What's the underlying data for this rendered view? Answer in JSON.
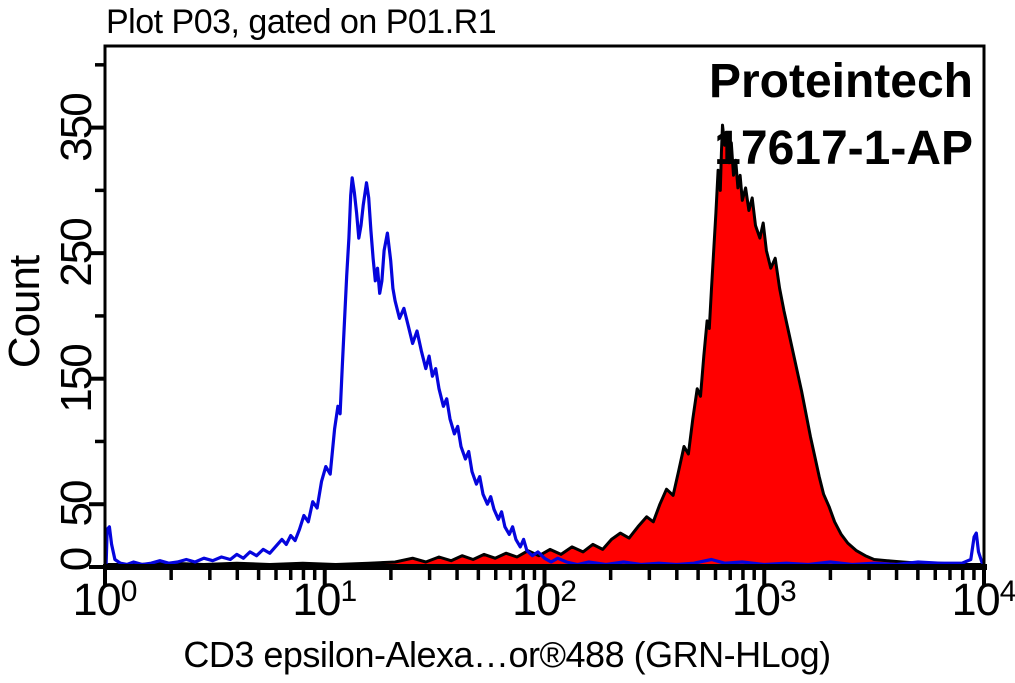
{
  "title": "Plot P03, gated on P01.R1",
  "annotations": {
    "brand": "Proteintech",
    "catalog": "17617-1-AP"
  },
  "colors": {
    "background": "#ffffff",
    "frame": "#000000",
    "text": "#000000",
    "blue_histogram": "#0505dd",
    "red_fill": "#ff0000",
    "red_outline": "#000000"
  },
  "chart_data": {
    "type": "area",
    "subtype": "flow-cytometry-histogram-overlay",
    "title": "Plot P03, gated on P01.R1",
    "xlabel": "CD3 epsilon-Alexa…or®488 (GRN-HLog)",
    "ylabel": "Count",
    "x_scale": "log10",
    "x_log_range": [
      0,
      4
    ],
    "x_tick_exponents": [
      0,
      1,
      2,
      3,
      4
    ],
    "ylim": [
      0,
      415
    ],
    "y_major_ticks": [
      0,
      50,
      150,
      250,
      350
    ],
    "y_minor_ticks": [
      100,
      200,
      300,
      400
    ],
    "grid": false,
    "legend": "none",
    "series": [
      {
        "name": "red-filled-histogram",
        "style": "filled",
        "fill": "#ff0000",
        "stroke": "#000000",
        "peak": {
          "x_log": 2.81,
          "count": 352
        },
        "points": [
          [
            0.0,
            2
          ],
          [
            0.15,
            2
          ],
          [
            0.3,
            3
          ],
          [
            0.45,
            2
          ],
          [
            0.6,
            3
          ],
          [
            0.75,
            2
          ],
          [
            0.9,
            3
          ],
          [
            1.05,
            2
          ],
          [
            1.2,
            3
          ],
          [
            1.32,
            4
          ],
          [
            1.4,
            7
          ],
          [
            1.46,
            4
          ],
          [
            1.52,
            8
          ],
          [
            1.575,
            5
          ],
          [
            1.625,
            9
          ],
          [
            1.675,
            6
          ],
          [
            1.725,
            10
          ],
          [
            1.775,
            7
          ],
          [
            1.825,
            11
          ],
          [
            1.875,
            8
          ],
          [
            1.925,
            13
          ],
          [
            1.975,
            9
          ],
          [
            2.025,
            14
          ],
          [
            2.075,
            10
          ],
          [
            2.125,
            16
          ],
          [
            2.175,
            12
          ],
          [
            2.22,
            18
          ],
          [
            2.265,
            14
          ],
          [
            2.305,
            22
          ],
          [
            2.345,
            27
          ],
          [
            2.385,
            23
          ],
          [
            2.425,
            32
          ],
          [
            2.465,
            40
          ],
          [
            2.495,
            36
          ],
          [
            2.525,
            50
          ],
          [
            2.555,
            62
          ],
          [
            2.585,
            57
          ],
          [
            2.61,
            76
          ],
          [
            2.635,
            96
          ],
          [
            2.655,
            90
          ],
          [
            2.675,
            118
          ],
          [
            2.695,
            142
          ],
          [
            2.71,
            136
          ],
          [
            2.725,
            168
          ],
          [
            2.74,
            196
          ],
          [
            2.75,
            190
          ],
          [
            2.76,
            222
          ],
          [
            2.77,
            252
          ],
          [
            2.78,
            282
          ],
          [
            2.79,
            316
          ],
          [
            2.8,
            300
          ],
          [
            2.805,
            330
          ],
          [
            2.81,
            352
          ],
          [
            2.82,
            336
          ],
          [
            2.83,
            344
          ],
          [
            2.84,
            322
          ],
          [
            2.85,
            338
          ],
          [
            2.86,
            312
          ],
          [
            2.87,
            324
          ],
          [
            2.88,
            302
          ],
          [
            2.89,
            312
          ],
          [
            2.9,
            292
          ],
          [
            2.915,
            302
          ],
          [
            2.93,
            284
          ],
          [
            2.945,
            294
          ],
          [
            2.96,
            272
          ],
          [
            2.98,
            262
          ],
          [
            2.995,
            274
          ],
          [
            3.01,
            252
          ],
          [
            3.03,
            238
          ],
          [
            3.05,
            246
          ],
          [
            3.07,
            222
          ],
          [
            3.09,
            204
          ],
          [
            3.11,
            188
          ],
          [
            3.13,
            172
          ],
          [
            3.15,
            156
          ],
          [
            3.17,
            140
          ],
          [
            3.19,
            122
          ],
          [
            3.21,
            104
          ],
          [
            3.23,
            88
          ],
          [
            3.25,
            72
          ],
          [
            3.27,
            58
          ],
          [
            3.295,
            48
          ],
          [
            3.32,
            36
          ],
          [
            3.35,
            26
          ],
          [
            3.38,
            19
          ],
          [
            3.42,
            13
          ],
          [
            3.46,
            9
          ],
          [
            3.5,
            6
          ],
          [
            3.56,
            5
          ],
          [
            3.63,
            4
          ],
          [
            3.71,
            3
          ],
          [
            3.8,
            3
          ],
          [
            3.9,
            2
          ],
          [
            4.0,
            2
          ]
        ]
      },
      {
        "name": "blue-open-histogram",
        "style": "open",
        "color": "#0505dd",
        "peak": {
          "x_log": 1.125,
          "count": 310
        },
        "points": [
          [
            0.005,
            2
          ],
          [
            0.01,
            30
          ],
          [
            0.02,
            32
          ],
          [
            0.03,
            18
          ],
          [
            0.045,
            6
          ],
          [
            0.07,
            3
          ],
          [
            0.1,
            2
          ],
          [
            0.13,
            4
          ],
          [
            0.17,
            2
          ],
          [
            0.21,
            3
          ],
          [
            0.25,
            5
          ],
          [
            0.29,
            3
          ],
          [
            0.33,
            4
          ],
          [
            0.37,
            6
          ],
          [
            0.41,
            4
          ],
          [
            0.45,
            7
          ],
          [
            0.49,
            5
          ],
          [
            0.53,
            8
          ],
          [
            0.57,
            6
          ],
          [
            0.6,
            10
          ],
          [
            0.63,
            7
          ],
          [
            0.66,
            12
          ],
          [
            0.69,
            9
          ],
          [
            0.72,
            14
          ],
          [
            0.75,
            11
          ],
          [
            0.78,
            17
          ],
          [
            0.805,
            22
          ],
          [
            0.825,
            18
          ],
          [
            0.845,
            25
          ],
          [
            0.865,
            21
          ],
          [
            0.885,
            30
          ],
          [
            0.905,
            41
          ],
          [
            0.925,
            36
          ],
          [
            0.945,
            52
          ],
          [
            0.965,
            47
          ],
          [
            0.985,
            68
          ],
          [
            1.005,
            80
          ],
          [
            1.025,
            74
          ],
          [
            1.045,
            110
          ],
          [
            1.06,
            128
          ],
          [
            1.07,
            122
          ],
          [
            1.08,
            160
          ],
          [
            1.09,
            196
          ],
          [
            1.1,
            232
          ],
          [
            1.11,
            262
          ],
          [
            1.118,
            296
          ],
          [
            1.125,
            310
          ],
          [
            1.135,
            298
          ],
          [
            1.145,
            282
          ],
          [
            1.155,
            262
          ],
          [
            1.165,
            272
          ],
          [
            1.175,
            288
          ],
          [
            1.19,
            306
          ],
          [
            1.2,
            294
          ],
          [
            1.21,
            268
          ],
          [
            1.22,
            246
          ],
          [
            1.23,
            228
          ],
          [
            1.24,
            238
          ],
          [
            1.25,
            218
          ],
          [
            1.26,
            228
          ],
          [
            1.27,
            252
          ],
          [
            1.285,
            266
          ],
          [
            1.3,
            244
          ],
          [
            1.31,
            222
          ],
          [
            1.32,
            212
          ],
          [
            1.34,
            198
          ],
          [
            1.36,
            206
          ],
          [
            1.38,
            192
          ],
          [
            1.4,
            178
          ],
          [
            1.42,
            188
          ],
          [
            1.44,
            172
          ],
          [
            1.46,
            158
          ],
          [
            1.475,
            168
          ],
          [
            1.49,
            152
          ],
          [
            1.505,
            158
          ],
          [
            1.52,
            142
          ],
          [
            1.54,
            128
          ],
          [
            1.555,
            134
          ],
          [
            1.57,
            118
          ],
          [
            1.59,
            106
          ],
          [
            1.605,
            112
          ],
          [
            1.62,
            96
          ],
          [
            1.64,
            86
          ],
          [
            1.655,
            92
          ],
          [
            1.67,
            76
          ],
          [
            1.69,
            66
          ],
          [
            1.705,
            72
          ],
          [
            1.72,
            58
          ],
          [
            1.74,
            50
          ],
          [
            1.755,
            56
          ],
          [
            1.77,
            46
          ],
          [
            1.79,
            38
          ],
          [
            1.805,
            44
          ],
          [
            1.82,
            32
          ],
          [
            1.84,
            26
          ],
          [
            1.855,
            32
          ],
          [
            1.87,
            22
          ],
          [
            1.89,
            16
          ],
          [
            1.905,
            22
          ],
          [
            1.92,
            13
          ],
          [
            1.945,
            9
          ],
          [
            1.97,
            12
          ],
          [
            2.0,
            7
          ],
          [
            2.03,
            4
          ],
          [
            2.06,
            7
          ],
          [
            2.1,
            4
          ],
          [
            2.15,
            2
          ],
          [
            2.2,
            4
          ],
          [
            2.28,
            2
          ],
          [
            2.36,
            4
          ],
          [
            2.44,
            2
          ],
          [
            2.52,
            3
          ],
          [
            2.6,
            2
          ],
          [
            2.68,
            3
          ],
          [
            2.76,
            6
          ],
          [
            2.82,
            3
          ],
          [
            2.9,
            4
          ],
          [
            3.0,
            2
          ],
          [
            3.1,
            3
          ],
          [
            3.2,
            2
          ],
          [
            3.3,
            4
          ],
          [
            3.4,
            2
          ],
          [
            3.5,
            3
          ],
          [
            3.6,
            2
          ],
          [
            3.7,
            4
          ],
          [
            3.8,
            3
          ],
          [
            3.9,
            3
          ],
          [
            3.94,
            6
          ],
          [
            3.955,
            24
          ],
          [
            3.965,
            27
          ],
          [
            3.975,
            12
          ],
          [
            3.99,
            4
          ],
          [
            4.0,
            2
          ]
        ]
      }
    ]
  }
}
